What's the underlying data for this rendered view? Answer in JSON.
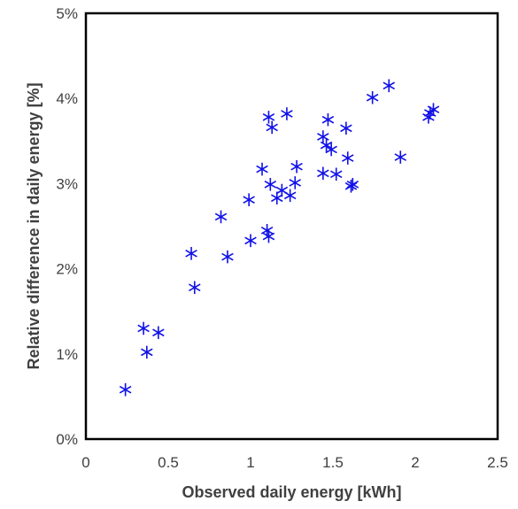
{
  "chart_data": {
    "type": "scatter",
    "title": "",
    "xlabel": "Observed daily energy [kWh]",
    "ylabel": "Relative difference in daily energy [%]",
    "xlim": [
      0,
      2.5
    ],
    "ylim": [
      0,
      5
    ],
    "x_ticks": [
      0,
      0.5,
      1,
      1.5,
      2,
      2.5
    ],
    "x_tick_labels": [
      "0",
      "0.5",
      "1",
      "1.5",
      "2",
      "2.5"
    ],
    "y_ticks": [
      0,
      1,
      2,
      3,
      4,
      5
    ],
    "y_tick_labels": [
      "0%",
      "1%",
      "2%",
      "3%",
      "4%",
      "5%"
    ],
    "grid": false,
    "legend": "none",
    "marker": "asterisk",
    "marker_color": "#1010e8",
    "points": [
      {
        "x": 0.24,
        "y": 0.58
      },
      {
        "x": 0.35,
        "y": 1.3
      },
      {
        "x": 0.37,
        "y": 1.02
      },
      {
        "x": 0.44,
        "y": 1.25
      },
      {
        "x": 0.64,
        "y": 2.18
      },
      {
        "x": 0.66,
        "y": 1.78
      },
      {
        "x": 0.82,
        "y": 2.61
      },
      {
        "x": 0.86,
        "y": 2.14
      },
      {
        "x": 0.99,
        "y": 2.81
      },
      {
        "x": 1.0,
        "y": 2.33
      },
      {
        "x": 1.07,
        "y": 3.17
      },
      {
        "x": 1.1,
        "y": 2.45
      },
      {
        "x": 1.11,
        "y": 2.38
      },
      {
        "x": 1.11,
        "y": 3.78
      },
      {
        "x": 1.12,
        "y": 2.99
      },
      {
        "x": 1.13,
        "y": 3.66
      },
      {
        "x": 1.16,
        "y": 2.83
      },
      {
        "x": 1.19,
        "y": 2.92
      },
      {
        "x": 1.22,
        "y": 3.82
      },
      {
        "x": 1.24,
        "y": 2.86
      },
      {
        "x": 1.27,
        "y": 3.01
      },
      {
        "x": 1.28,
        "y": 3.2
      },
      {
        "x": 1.44,
        "y": 3.55
      },
      {
        "x": 1.44,
        "y": 3.12
      },
      {
        "x": 1.46,
        "y": 3.45
      },
      {
        "x": 1.47,
        "y": 3.75
      },
      {
        "x": 1.49,
        "y": 3.4
      },
      {
        "x": 1.52,
        "y": 3.11
      },
      {
        "x": 1.58,
        "y": 3.65
      },
      {
        "x": 1.59,
        "y": 3.3
      },
      {
        "x": 1.61,
        "y": 2.97
      },
      {
        "x": 1.62,
        "y": 2.99
      },
      {
        "x": 1.74,
        "y": 4.01
      },
      {
        "x": 1.84,
        "y": 4.15
      },
      {
        "x": 1.91,
        "y": 3.31
      },
      {
        "x": 2.08,
        "y": 3.78
      },
      {
        "x": 2.09,
        "y": 3.83
      },
      {
        "x": 2.11,
        "y": 3.87
      }
    ]
  }
}
